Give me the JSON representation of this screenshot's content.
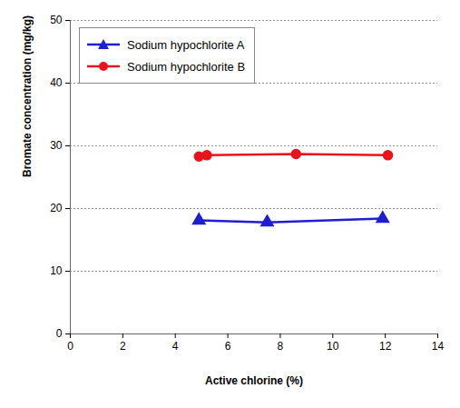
{
  "chart_data": {
    "type": "line",
    "x_label": "Active chlorine (%)",
    "y_label": "Bromate concentration (mg/kg)",
    "series": [
      {
        "name": "Sodium hypochlorite A",
        "color": "#1f1fd0",
        "marker": "triangle",
        "line_style": "solid",
        "x": [
          4.9,
          7.5,
          11.9
        ],
        "values": [
          18.1,
          17.8,
          18.4
        ]
      },
      {
        "name": "Sodium hypochlorite B",
        "color": "#e8141c",
        "marker": "circle",
        "line_style": "solid",
        "x": [
          4.9,
          5.2,
          8.6,
          12.1
        ],
        "values": [
          28.3,
          28.5,
          28.7,
          28.5
        ]
      }
    ],
    "xlim": [
      0,
      14
    ],
    "xticks": [
      0,
      2,
      4,
      6,
      8,
      10,
      12,
      14
    ],
    "ylim": [
      0,
      50
    ],
    "yticks": [
      0,
      10,
      20,
      30,
      40,
      50
    ],
    "grid": true,
    "legend": "top-left"
  }
}
